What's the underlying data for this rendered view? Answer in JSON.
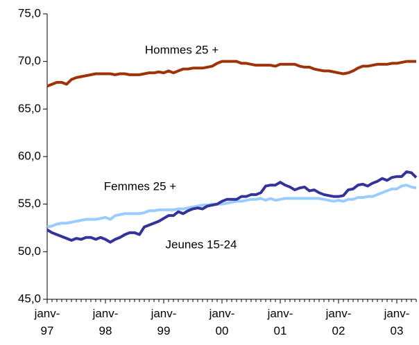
{
  "chart_data": {
    "type": "line",
    "annotations": [
      "Hommes 25 +",
      "Femmes 25 +",
      "Jeunes 15-24"
    ],
    "categories": [
      "janv-\n97",
      null,
      null,
      null,
      null,
      null,
      null,
      null,
      null,
      null,
      null,
      null,
      "janv-\n98",
      null,
      null,
      null,
      null,
      null,
      null,
      null,
      null,
      null,
      null,
      null,
      "janv-\n99",
      null,
      null,
      null,
      null,
      null,
      null,
      null,
      null,
      null,
      null,
      null,
      "janv-\n00",
      null,
      null,
      null,
      null,
      null,
      null,
      null,
      null,
      null,
      null,
      null,
      "janv-\n01",
      null,
      null,
      null,
      null,
      null,
      null,
      null,
      null,
      null,
      null,
      null,
      "janv-\n02",
      null,
      null,
      null,
      null,
      null,
      null,
      null,
      null,
      null,
      null,
      null,
      "janv-\n03",
      null,
      null,
      null,
      null
    ],
    "series": [
      {
        "name": "Hommes 25 +",
        "color": "#a0320a",
        "values": [
          67.4,
          67.6,
          67.8,
          67.8,
          67.6,
          68.1,
          68.3,
          68.4,
          68.5,
          68.6,
          68.7,
          68.7,
          68.7,
          68.7,
          68.6,
          68.7,
          68.7,
          68.6,
          68.6,
          68.6,
          68.7,
          68.8,
          68.8,
          68.9,
          68.8,
          69.0,
          68.8,
          69.0,
          69.2,
          69.2,
          69.3,
          69.3,
          69.3,
          69.4,
          69.5,
          69.8,
          70.0,
          70.0,
          70.0,
          70.0,
          69.8,
          69.8,
          69.7,
          69.6,
          69.6,
          69.6,
          69.6,
          69.5,
          69.7,
          69.7,
          69.7,
          69.7,
          69.5,
          69.4,
          69.4,
          69.2,
          69.1,
          69.0,
          69.0,
          68.9,
          68.8,
          68.7,
          68.8,
          69.0,
          69.3,
          69.5,
          69.5,
          69.6,
          69.7,
          69.7,
          69.7,
          69.8,
          69.8,
          69.9,
          70.0,
          70.0,
          70.0
        ]
      },
      {
        "name": "Femmes 25 +",
        "color": "#333399",
        "values": [
          52.3,
          52.0,
          51.8,
          51.6,
          51.4,
          51.2,
          51.4,
          51.3,
          51.5,
          51.5,
          51.3,
          51.5,
          51.3,
          51.0,
          51.3,
          51.5,
          51.8,
          52.0,
          52.0,
          51.8,
          52.6,
          52.8,
          53.0,
          53.2,
          53.5,
          53.8,
          53.8,
          54.2,
          54.0,
          54.3,
          54.5,
          54.6,
          54.5,
          54.8,
          54.9,
          55.0,
          55.3,
          55.5,
          55.5,
          55.5,
          55.8,
          55.8,
          56.0,
          56.0,
          56.2,
          56.9,
          57.0,
          57.0,
          57.3,
          57.0,
          56.8,
          56.5,
          56.7,
          56.8,
          56.4,
          56.5,
          56.2,
          56.0,
          55.9,
          55.8,
          55.8,
          55.9,
          56.5,
          56.6,
          57.0,
          57.1,
          56.9,
          57.2,
          57.4,
          57.7,
          57.5,
          57.8,
          57.9,
          57.9,
          58.4,
          58.3,
          57.8
        ]
      },
      {
        "name": "Jeunes 15-24",
        "color": "#99ccff",
        "values": [
          52.6,
          52.7,
          52.9,
          53.0,
          53.0,
          53.1,
          53.2,
          53.3,
          53.4,
          53.4,
          53.4,
          53.5,
          53.6,
          53.4,
          53.8,
          53.9,
          54.0,
          54.0,
          54.0,
          54.0,
          54.1,
          54.3,
          54.3,
          54.4,
          54.4,
          54.4,
          54.4,
          54.5,
          54.5,
          54.6,
          54.7,
          54.8,
          54.9,
          54.9,
          55.0,
          55.0,
          55.0,
          55.1,
          55.2,
          55.3,
          55.3,
          55.4,
          55.5,
          55.5,
          55.6,
          55.4,
          55.6,
          55.4,
          55.5,
          55.6,
          55.6,
          55.6,
          55.6,
          55.6,
          55.6,
          55.6,
          55.6,
          55.5,
          55.4,
          55.3,
          55.4,
          55.3,
          55.5,
          55.5,
          55.7,
          55.7,
          55.8,
          55.8,
          56.0,
          56.2,
          56.4,
          56.6,
          56.6,
          56.9,
          57.0,
          56.8,
          56.7
        ]
      }
    ],
    "ylim": [
      45,
      75
    ],
    "yticks": [
      {
        "value": 45,
        "label": "45,0"
      },
      {
        "value": 50,
        "label": "50,0"
      },
      {
        "value": 55,
        "label": "55,0"
      },
      {
        "value": 60,
        "label": "60,0"
      },
      {
        "value": 65,
        "label": "65,0"
      },
      {
        "value": 70,
        "label": "70,0"
      },
      {
        "value": 75,
        "label": "75,0"
      }
    ],
    "grid": false
  }
}
